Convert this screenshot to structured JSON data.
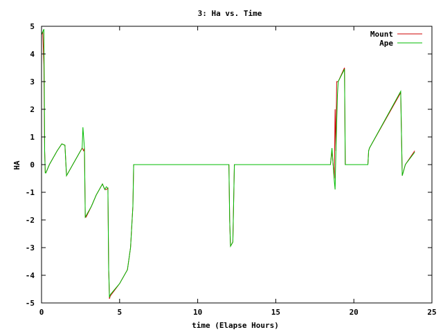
{
  "chart_data": {
    "type": "line",
    "title": "3: Ha vs. Time",
    "xlabel": "time (Elapse Hours)",
    "ylabel": "HA",
    "xlim": [
      0,
      25
    ],
    "ylim": [
      -5,
      5
    ],
    "xticks": [
      0,
      5,
      10,
      15,
      20,
      25
    ],
    "yticks": [
      -5,
      -4,
      -3,
      -2,
      -1,
      0,
      1,
      2,
      3,
      4,
      5
    ],
    "grid": false,
    "legend_position": "top-right",
    "series": [
      {
        "name": "Mount",
        "color": "#cc0000",
        "x": [
          0.0,
          0.08,
          0.15,
          0.2,
          0.24,
          0.28,
          0.5,
          1.0,
          1.3,
          1.5,
          1.6,
          2.0,
          2.5,
          2.6,
          2.7,
          2.75,
          2.8,
          2.85,
          3.2,
          3.5,
          3.9,
          4.05,
          4.15,
          4.25,
          4.3,
          4.32,
          4.35,
          4.4,
          5.0,
          5.5,
          5.7,
          5.85,
          5.9,
          12.0,
          12.05,
          12.1,
          12.25,
          12.35,
          18.5,
          18.6,
          18.75,
          18.8,
          18.85,
          18.9,
          19.0,
          19.4,
          19.45,
          20.9,
          20.95,
          21.0,
          23.0,
          23.1,
          23.3,
          23.9
        ],
        "y": [
          4.7,
          4.8,
          3.6,
          0.5,
          -0.3,
          -0.3,
          0.0,
          0.5,
          0.75,
          0.7,
          -0.4,
          0.0,
          0.5,
          0.6,
          0.5,
          0.6,
          -1.9,
          -1.9,
          -1.5,
          -1.1,
          -0.7,
          -0.9,
          -0.9,
          -0.85,
          -3.8,
          -4.2,
          -4.85,
          -4.75,
          -4.3,
          -3.8,
          -3.0,
          -1.5,
          0.0,
          0.0,
          -2.0,
          -2.95,
          -2.8,
          0.0,
          0.0,
          0.5,
          -0.5,
          2.0,
          0.5,
          3.0,
          3.0,
          3.5,
          0.0,
          0.0,
          0.5,
          0.6,
          2.6,
          -0.4,
          0.0,
          0.5
        ]
      },
      {
        "name": "Ape",
        "color": "#00bb00",
        "x": [
          0.0,
          0.08,
          0.15,
          0.18,
          0.2,
          0.24,
          0.28,
          0.5,
          1.0,
          1.3,
          1.5,
          1.6,
          2.0,
          2.5,
          2.6,
          2.65,
          2.75,
          2.8,
          2.85,
          3.2,
          3.5,
          3.9,
          4.05,
          4.15,
          4.25,
          4.3,
          4.32,
          4.35,
          4.4,
          5.0,
          5.5,
          5.7,
          5.85,
          5.9,
          12.0,
          12.05,
          12.1,
          12.25,
          12.35,
          18.5,
          18.6,
          18.75,
          18.8,
          18.85,
          18.95,
          19.0,
          19.4,
          19.45,
          20.9,
          20.95,
          21.0,
          23.0,
          23.1,
          23.3,
          23.9
        ],
        "y": [
          4.7,
          4.8,
          4.9,
          2.4,
          0.5,
          -0.3,
          -0.3,
          0.0,
          0.5,
          0.75,
          0.7,
          -0.4,
          0.0,
          0.5,
          0.6,
          1.35,
          0.6,
          -1.9,
          -1.85,
          -1.5,
          -1.1,
          -0.7,
          -0.9,
          -0.8,
          -0.85,
          -3.8,
          -4.2,
          -4.8,
          -4.7,
          -4.3,
          -3.8,
          -3.0,
          -1.5,
          0.0,
          0.0,
          -2.0,
          -2.95,
          -2.8,
          0.0,
          0.0,
          0.6,
          -0.6,
          -0.9,
          0.5,
          2.5,
          3.0,
          3.45,
          0.0,
          0.0,
          0.5,
          0.6,
          2.65,
          -0.4,
          0.0,
          0.45
        ]
      }
    ]
  }
}
